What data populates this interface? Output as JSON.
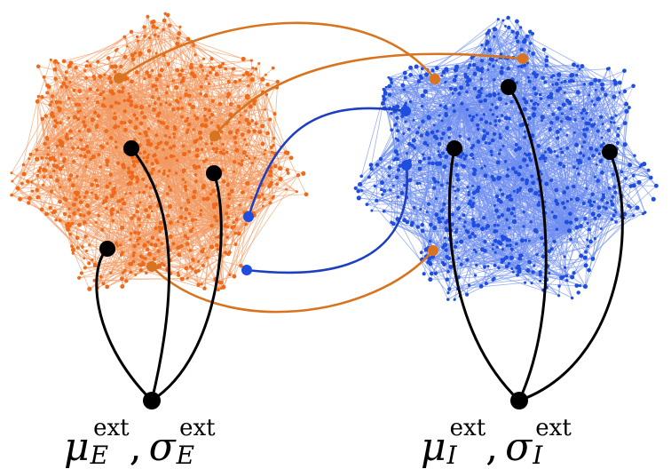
{
  "populations": {
    "excitatory": {
      "color": "#ee6a1a",
      "edge_color": "#f29a63",
      "label": {
        "mu": "μ",
        "sigma": "σ",
        "sub": "E",
        "sup": "ext",
        "sep": ","
      }
    },
    "inhibitory": {
      "color": "#1f4ddf",
      "edge_color": "#6f8ef0",
      "label": {
        "mu": "μ",
        "sigma": "σ",
        "sub": "I",
        "sup": "ext",
        "sep": ","
      }
    }
  },
  "connections": {
    "e_to_i_color": "#d8741f",
    "i_to_e_color": "#1f3fc0",
    "external_color": "#000000"
  }
}
